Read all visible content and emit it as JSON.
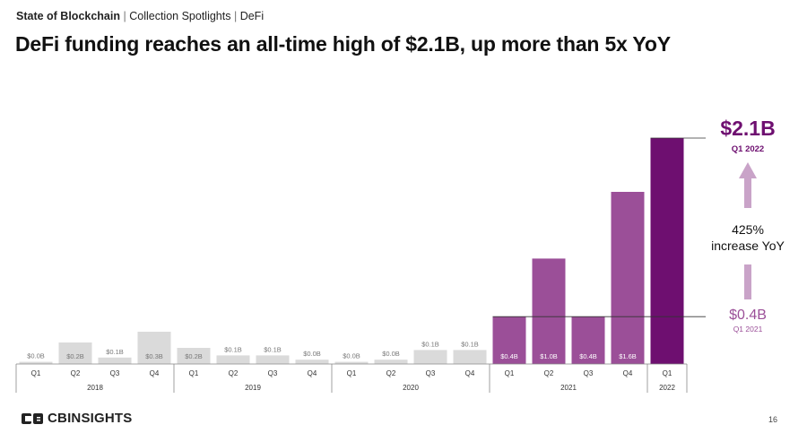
{
  "header": {
    "report": "State of Blockchain",
    "section1": "Collection Spotlights",
    "section2": "DeFi",
    "separator": "|"
  },
  "title": "DeFi funding reaches an all-time high of $2.1B, up more than 5x YoY",
  "chart_data": {
    "type": "bar",
    "title": "DeFi funding reaches an all-time high of $2.1B, up more than 5x YoY",
    "xlabel": "",
    "ylabel": "",
    "ylim": [
      0,
      2.1
    ],
    "categories": [
      "Q1",
      "Q2",
      "Q3",
      "Q4",
      "Q1",
      "Q2",
      "Q3",
      "Q4",
      "Q1",
      "Q2",
      "Q3",
      "Q4",
      "Q1",
      "Q2",
      "Q3",
      "Q4",
      "Q1"
    ],
    "years": [
      {
        "label": "2018",
        "count": 4
      },
      {
        "label": "2019",
        "count": 4
      },
      {
        "label": "2020",
        "count": 4
      },
      {
        "label": "2021",
        "count": 4
      },
      {
        "label": "2022",
        "count": 1
      }
    ],
    "values": [
      0.02,
      0.2,
      0.06,
      0.3,
      0.15,
      0.08,
      0.08,
      0.04,
      0.02,
      0.04,
      0.13,
      0.13,
      0.44,
      0.98,
      0.44,
      1.6,
      2.1
    ],
    "value_labels": [
      "$0.0B",
      "$0.2B",
      "$0.1B",
      "$0.3B",
      "$0.2B",
      "$0.1B",
      "$0.1B",
      "$0.0B",
      "$0.0B",
      "$0.0B",
      "$0.1B",
      "$0.1B",
      "$0.4B",
      "$1.0B",
      "$0.4B",
      "$1.6B",
      ""
    ],
    "bar_colors": [
      "#dadada",
      "#dadada",
      "#dadada",
      "#dadada",
      "#dadada",
      "#dadada",
      "#dadada",
      "#dadada",
      "#dadada",
      "#dadada",
      "#dadada",
      "#dadada",
      "#9b4f98",
      "#9b4f98",
      "#9b4f98",
      "#9b4f98",
      "#6e0f70"
    ],
    "annotations": {
      "high_value": "$2.1B",
      "high_period": "Q1 2022",
      "increase_pct": "425%",
      "increase_text": "increase YoY",
      "low_value": "$0.4B",
      "low_period": "Q1 2021"
    },
    "colors": {
      "highlight": "#6e0f70",
      "mid": "#9b4f98",
      "arrow": "#c9a3c8",
      "muted": "#dadada"
    }
  },
  "footer": {
    "brand": "CBINSIGHTS",
    "page": "16"
  }
}
